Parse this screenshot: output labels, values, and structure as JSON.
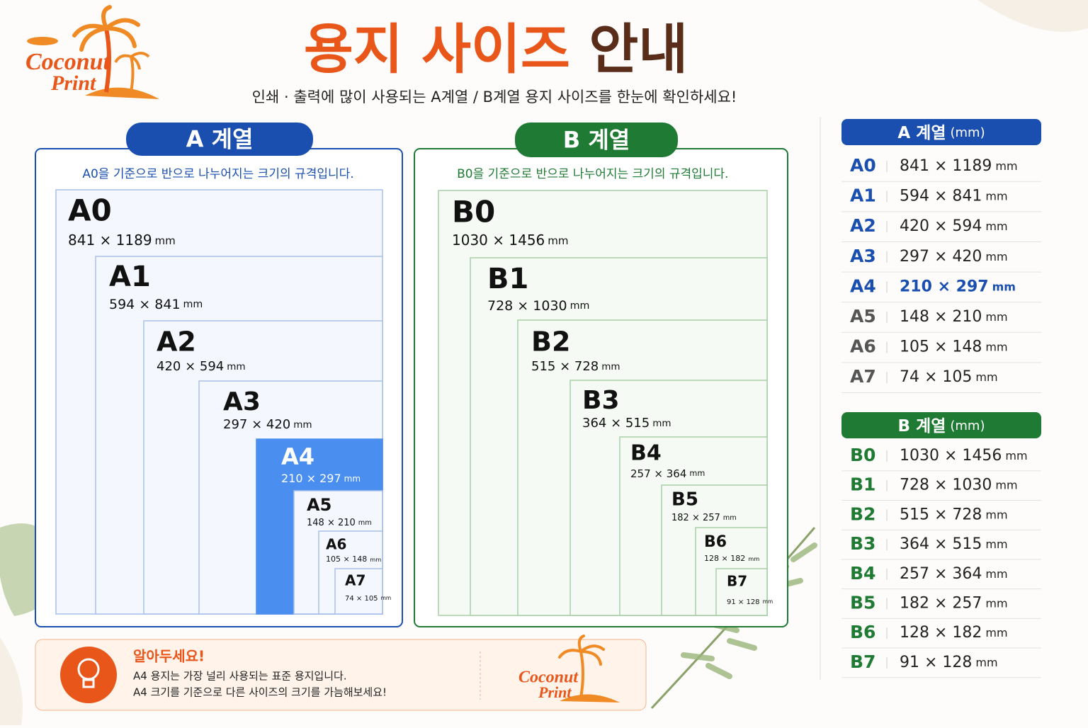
{
  "logo": {
    "line1": "Coconut",
    "line2": "Print"
  },
  "header": {
    "title_highlight": "용지 사이즈",
    "title_rest": "안내",
    "subtitle": "인쇄 · 출력에 많이 사용되는 A계열 / B계열 용지 사이즈를 한눈에 확인하세요!"
  },
  "panels": [
    {
      "tab": "A 계열",
      "description": "A0을 기준으로 반으로 나누어지는 크기의 규격입니다.",
      "sizes": [
        {
          "name": "A0",
          "dims": "841 × 1189",
          "unit": "mm"
        },
        {
          "name": "A1",
          "dims": "594 × 841",
          "unit": "mm"
        },
        {
          "name": "A2",
          "dims": "420 × 594",
          "unit": "mm"
        },
        {
          "name": "A3",
          "dims": "297 × 420",
          "unit": "mm"
        },
        {
          "name": "A4",
          "dims": "210 × 297",
          "unit": "mm",
          "highlight": true
        },
        {
          "name": "A5",
          "dims": "148 × 210",
          "unit": "mm"
        },
        {
          "name": "A6",
          "dims": "105 × 148",
          "unit": "mm"
        },
        {
          "name": "A7",
          "dims": "74 × 105",
          "unit": "mm"
        }
      ]
    },
    {
      "tab": "B 계열",
      "description": "B0을 기준으로 반으로 나누어지는 크기의 규격입니다.",
      "sizes": [
        {
          "name": "B0",
          "dims": "1030 × 1456",
          "unit": "mm"
        },
        {
          "name": "B1",
          "dims": "728 × 1030",
          "unit": "mm"
        },
        {
          "name": "B2",
          "dims": "515 × 728",
          "unit": "mm"
        },
        {
          "name": "B3",
          "dims": "364 × 515",
          "unit": "mm"
        },
        {
          "name": "B4",
          "dims": "257 × 364",
          "unit": "mm"
        },
        {
          "name": "B5",
          "dims": "182 × 257",
          "unit": "mm"
        },
        {
          "name": "B6",
          "dims": "128 × 182",
          "unit": "mm"
        },
        {
          "name": "B7",
          "dims": "91 × 128",
          "unit": "mm"
        }
      ]
    }
  ],
  "tables": [
    {
      "heading": "A 계열",
      "unit": "(mm)",
      "rows": [
        {
          "name": "A0",
          "dims": "841 × 1189",
          "unit": "mm",
          "color": "#1a4fb0"
        },
        {
          "name": "A1",
          "dims": "594 × 841",
          "unit": "mm",
          "color": "#1a4fb0"
        },
        {
          "name": "A2",
          "dims": "420 × 594",
          "unit": "mm",
          "color": "#1a4fb0"
        },
        {
          "name": "A3",
          "dims": "297 × 420",
          "unit": "mm",
          "color": "#1a4fb0"
        },
        {
          "name": "A4",
          "dims": "210 × 297",
          "unit": "mm",
          "color": "#1a4fb0",
          "highlight": true
        },
        {
          "name": "A5",
          "dims": "148 × 210",
          "unit": "mm",
          "color": "#555555"
        },
        {
          "name": "A6",
          "dims": "105 × 148",
          "unit": "mm",
          "color": "#555555"
        },
        {
          "name": "A7",
          "dims": "74 × 105",
          "unit": "mm",
          "color": "#555555"
        }
      ]
    },
    {
      "heading": "B 계열",
      "unit": "(mm)",
      "rows": [
        {
          "name": "B0",
          "dims": "1030 × 1456",
          "unit": "mm",
          "color": "#1f7a34"
        },
        {
          "name": "B1",
          "dims": "728 × 1030",
          "unit": "mm",
          "color": "#1f7a34"
        },
        {
          "name": "B2",
          "dims": "515 × 728",
          "unit": "mm",
          "color": "#1f7a34"
        },
        {
          "name": "B3",
          "dims": "364 × 515",
          "unit": "mm",
          "color": "#1f7a34"
        },
        {
          "name": "B4",
          "dims": "257 × 364",
          "unit": "mm",
          "color": "#1f7a34"
        },
        {
          "name": "B5",
          "dims": "182 × 257",
          "unit": "mm",
          "color": "#1f7a34"
        },
        {
          "name": "B6",
          "dims": "128 × 182",
          "unit": "mm",
          "color": "#1f7a34"
        },
        {
          "name": "B7",
          "dims": "91 × 128",
          "unit": "mm",
          "color": "#1f7a34"
        }
      ]
    }
  ],
  "tip": {
    "title": "알아두세요!",
    "lines": [
      "A4 용지는 가장 널리 사용되는 표준 용지입니다.",
      "A4 크기를 기준으로 다른 사이즈의 크기를 가늠해보세요!"
    ]
  }
}
